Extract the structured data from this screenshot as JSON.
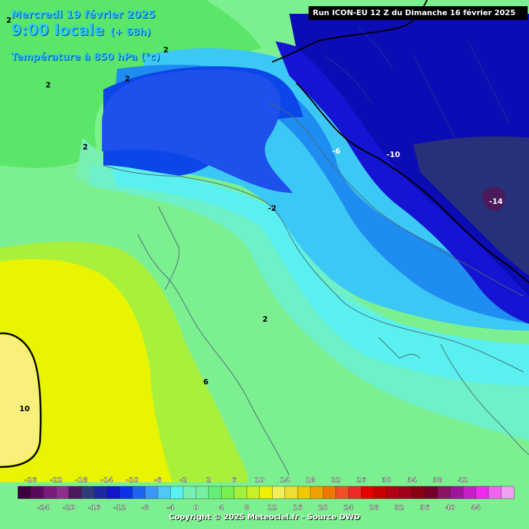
{
  "header": {
    "date_line": "Mercredi 19 février 2025",
    "time_line": "9:00 locale",
    "lead_time": "(+ 68h)",
    "parameter": "Température à 850 hPa (°c)"
  },
  "run_info": "Run ICON-EU 12 Z du Dimanche 16 février 2025",
  "copyright": "Copyright © 2025 Meteociel.fr - Source DWD",
  "map_labels": [
    {
      "text": "2"
    },
    {
      "text": "2"
    },
    {
      "text": "2"
    },
    {
      "text": "2"
    },
    {
      "text": "2"
    },
    {
      "text": "-6"
    },
    {
      "text": "-10"
    },
    {
      "text": "-14"
    },
    {
      "text": "-2"
    },
    {
      "text": "2"
    },
    {
      "text": "6"
    },
    {
      "text": "10"
    }
  ],
  "legend": {
    "upper_labels": [
      "-26",
      "-22",
      "-18",
      "-14",
      "-10",
      "-6",
      "-2",
      "2",
      "6",
      "10",
      "14",
      "18",
      "22",
      "26",
      "30",
      "34",
      "38",
      "42"
    ],
    "lower_labels": [
      "-24",
      "-20",
      "-16",
      "-12",
      "-8",
      "-4",
      "0",
      "4",
      "8",
      "12",
      "16",
      "20",
      "24",
      "28",
      "32",
      "36",
      "40",
      "44"
    ],
    "colors": [
      "#3C0040",
      "#5A0A5A",
      "#7A1A7A",
      "#8C2E8C",
      "#4A1A5A",
      "#2E3C78",
      "#1E28A0",
      "#1414C8",
      "#0A32E6",
      "#1E64F0",
      "#3C96F5",
      "#50C8F5",
      "#5AF0F0",
      "#78F0B4",
      "#78F0A0",
      "#64F078",
      "#78F050",
      "#A0F03C",
      "#C8F028",
      "#F0F000",
      "#F0F05A",
      "#F0DC32",
      "#F0C800",
      "#F0A000",
      "#F07800",
      "#F05028",
      "#F02828",
      "#E60000",
      "#C80000",
      "#B40014",
      "#A0001E",
      "#8C0014",
      "#780028",
      "#8C1464",
      "#A0149A",
      "#C81EC8",
      "#F028F0",
      "#F064F0",
      "#F0A0F0"
    ]
  }
}
